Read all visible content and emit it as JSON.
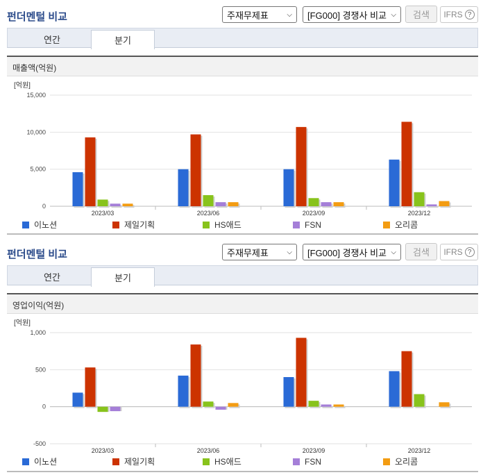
{
  "panels": [
    {
      "title": "펀더멘털 비교",
      "select1": "주재무제표",
      "select2": "[FG000] 경쟁사 비교",
      "search_label": "검색",
      "ifrs_label": "IFRS",
      "help_glyph": "?",
      "tabs": [
        {
          "label": "연간"
        },
        {
          "label": "분기"
        }
      ],
      "active_tab": "분기",
      "section_title": "매출액(억원)"
    },
    {
      "title": "펀더멘털 비교",
      "select1": "주재무제표",
      "select2": "[FG000] 경쟁사 비교",
      "search_label": "검색",
      "ifrs_label": "IFRS",
      "help_glyph": "?",
      "tabs": [
        {
          "label": "연간"
        },
        {
          "label": "분기"
        }
      ],
      "active_tab": "분기",
      "section_title": "영업이익(억원)"
    }
  ],
  "colors": {
    "이노션": "#2a6ad6",
    "제일기획": "#cc3300",
    "HS애드": "#88c31c",
    "FSN": "#a57fd8",
    "오리콤": "#f39c12"
  },
  "chart_data": [
    {
      "type": "bar",
      "unit": "[억원]",
      "categories": [
        "2023/03",
        "2023/06",
        "2023/09",
        "2023/12"
      ],
      "ylim": [
        0,
        15000
      ],
      "yticks": [
        0,
        5000,
        10000,
        15000
      ],
      "ytick_labels": [
        "0",
        "5,000",
        "10,000",
        "15,000"
      ],
      "grid": true,
      "legend": "bottom",
      "series": [
        {
          "name": "이노션",
          "values": [
            4600,
            5000,
            5000,
            6300
          ]
        },
        {
          "name": "제일기획",
          "values": [
            9300,
            9700,
            10700,
            11400
          ]
        },
        {
          "name": "HS애드",
          "values": [
            900,
            1500,
            1100,
            1900
          ]
        },
        {
          "name": "FSN",
          "values": [
            350,
            550,
            550,
            250
          ]
        },
        {
          "name": "오리콤",
          "values": [
            350,
            550,
            550,
            700
          ]
        }
      ]
    },
    {
      "type": "bar",
      "unit": "[억원]",
      "categories": [
        "2023/03",
        "2023/06",
        "2023/09",
        "2023/12"
      ],
      "ylim": [
        -500,
        1000
      ],
      "yticks": [
        -500,
        0,
        500,
        1000
      ],
      "ytick_labels": [
        "-500",
        "0",
        "500",
        "1,000"
      ],
      "grid": true,
      "legend": "bottom",
      "series": [
        {
          "name": "이노션",
          "values": [
            190,
            420,
            400,
            480
          ]
        },
        {
          "name": "제일기획",
          "values": [
            530,
            840,
            930,
            750
          ]
        },
        {
          "name": "HS애드",
          "values": [
            -70,
            70,
            80,
            170
          ]
        },
        {
          "name": "FSN",
          "values": [
            -60,
            -40,
            30,
            0
          ]
        },
        {
          "name": "오리콤",
          "values": [
            0,
            50,
            30,
            60
          ]
        }
      ]
    }
  ]
}
